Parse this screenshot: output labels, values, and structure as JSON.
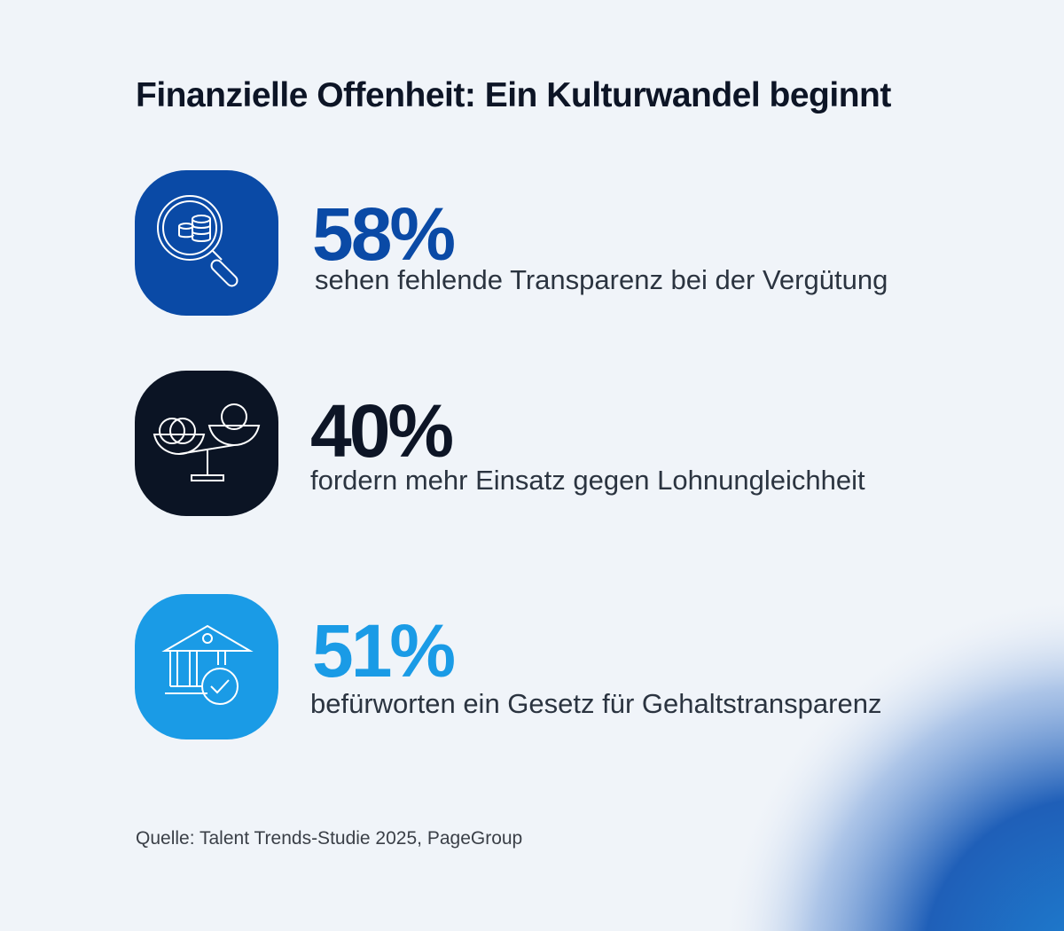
{
  "title": "Finanzielle Offenheit: Ein Kulturwandel beginnt",
  "items": [
    {
      "stat": "58%",
      "label": "sehen fehlende Transparenz bei der Vergütung"
    },
    {
      "stat": "40%",
      "label": "fordern mehr Einsatz gegen Lohnungleichheit"
    },
    {
      "stat": "51%",
      "label": "befürworten ein Gesetz für Gehaltstransparenz"
    }
  ],
  "source": "Quelle: Talent Trends-Studie 2025, PageGroup"
}
